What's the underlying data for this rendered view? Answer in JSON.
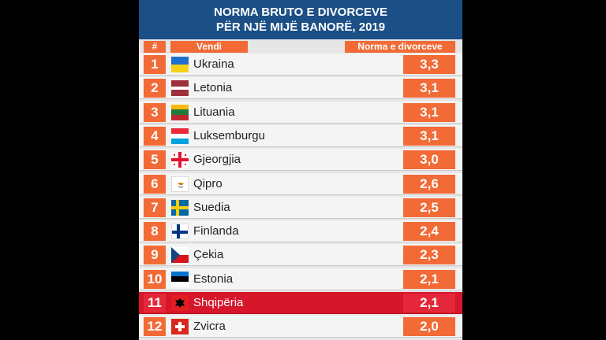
{
  "title": {
    "line1": "NORMA BRUTO E DIVORCEVE",
    "line2": "PËR NJË MIJË BANORË, 2019"
  },
  "colors": {
    "header_bg": "#1b4f86",
    "accent": "#f26a36",
    "highlight": "#d6162a"
  },
  "chart_data": {
    "type": "table",
    "columns": [
      "#",
      "Vendi",
      "Norma e divorceve"
    ],
    "rows": [
      {
        "rank": "1",
        "country": "Ukraina",
        "value": "3,3",
        "flag": "ukraine-flag-icon"
      },
      {
        "rank": "2",
        "country": "Letonia",
        "value": "3,1",
        "flag": "latvia-flag-icon"
      },
      {
        "rank": "3",
        "country": "Lituania",
        "value": "3,1",
        "flag": "lithuania-flag-icon"
      },
      {
        "rank": "4",
        "country": "Luksemburgu",
        "value": "3,1",
        "flag": "luxembourg-flag-icon"
      },
      {
        "rank": "5",
        "country": "Gjeorgjia",
        "value": "3,0",
        "flag": "georgia-flag-icon"
      },
      {
        "rank": "6",
        "country": "Qipro",
        "value": "2,6",
        "flag": "cyprus-flag-icon"
      },
      {
        "rank": "7",
        "country": "Suedia",
        "value": "2,5",
        "flag": "sweden-flag-icon"
      },
      {
        "rank": "8",
        "country": "Finlanda",
        "value": "2,4",
        "flag": "finland-flag-icon"
      },
      {
        "rank": "9",
        "country": "Çekia",
        "value": "2,3",
        "flag": "czechia-flag-icon"
      },
      {
        "rank": "10",
        "country": "Estonia",
        "value": "2,1",
        "flag": "estonia-flag-icon"
      },
      {
        "rank": "11",
        "country": "Shqipëria",
        "value": "2,1",
        "flag": "albania-flag-icon",
        "highlighted": true
      },
      {
        "rank": "12",
        "country": "Zvicra",
        "value": "2,0",
        "flag": "switzerland-flag-icon"
      }
    ]
  }
}
